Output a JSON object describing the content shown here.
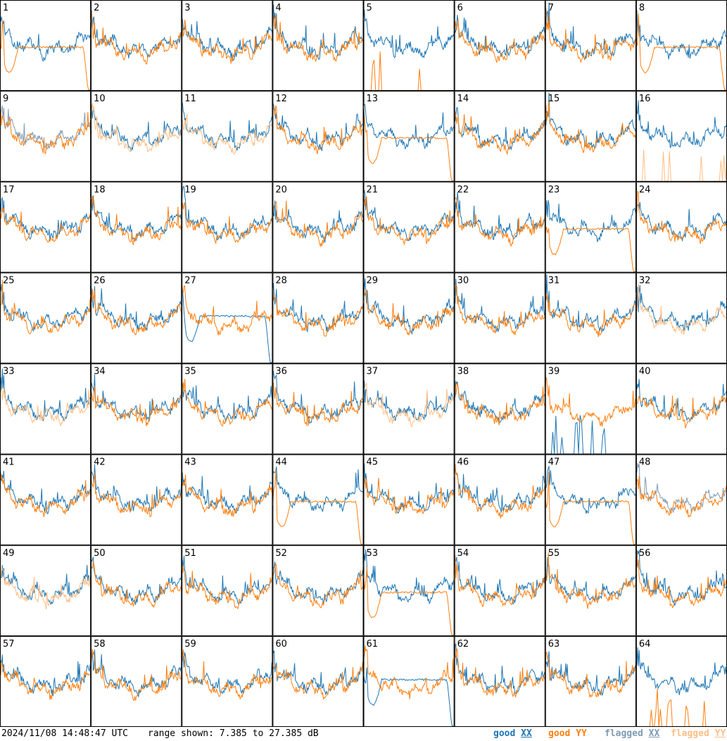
{
  "chart_data": {
    "type": "line",
    "panel_count": 64,
    "panels": [
      "1",
      "2",
      "3",
      "4",
      "5",
      "6",
      "7",
      "8",
      "9",
      "10",
      "11",
      "12",
      "13",
      "14",
      "15",
      "16",
      "17",
      "18",
      "19",
      "20",
      "21",
      "22",
      "23",
      "24",
      "25",
      "26",
      "27",
      "28",
      "29",
      "30",
      "31",
      "32",
      "33",
      "34",
      "35",
      "36",
      "37",
      "38",
      "39",
      "40",
      "41",
      "42",
      "43",
      "44",
      "45",
      "46",
      "47",
      "48",
      "49",
      "50",
      "51",
      "52",
      "53",
      "54",
      "55",
      "56",
      "57",
      "58",
      "59",
      "60",
      "61",
      "62",
      "63",
      "64"
    ],
    "status": {
      "good": [
        "2",
        "3",
        "4",
        "6",
        "7",
        "14",
        "15",
        "17",
        "18",
        "19",
        "20",
        "21",
        "22",
        "24",
        "26",
        "28",
        "29",
        "30",
        "31",
        "35",
        "36",
        "38",
        "40",
        "41",
        "42",
        "43",
        "44",
        "45",
        "46",
        "47",
        "50",
        "51",
        "52",
        "53",
        "54",
        "56",
        "57",
        "58",
        "59",
        "60",
        "61",
        "63"
      ],
      "xx_flagged": [
        "9",
        "48"
      ],
      "yy_flagged": [
        "10",
        "11",
        "16",
        "32",
        "33",
        "37",
        "49"
      ],
      "xx_missing": [
        "39"
      ],
      "yy_missing": [
        "5",
        "16",
        "64"
      ]
    },
    "ylim_db": [
      7.385,
      27.385
    ],
    "colors": {
      "good_xx": "#1f77b4",
      "good_yy": "#ff7f0e",
      "flagged_xx": "#7f9bb4",
      "flagged_yy": "#ffbf86"
    }
  },
  "footer": {
    "timestamp": "2024/11/08 14:48:47 UTC",
    "range": "range shown: 7.385 to 27.385 dB"
  },
  "legend": [
    {
      "word": "good",
      "pol": "XX",
      "color": "#1f77b4"
    },
    {
      "word": "good",
      "pol": "YY",
      "color": "#ff7f0e"
    },
    {
      "word": "flagged",
      "pol": "XX",
      "color": "#7f9bb4"
    },
    {
      "word": "flagged",
      "pol": "YY",
      "color": "#ffbf86"
    }
  ]
}
